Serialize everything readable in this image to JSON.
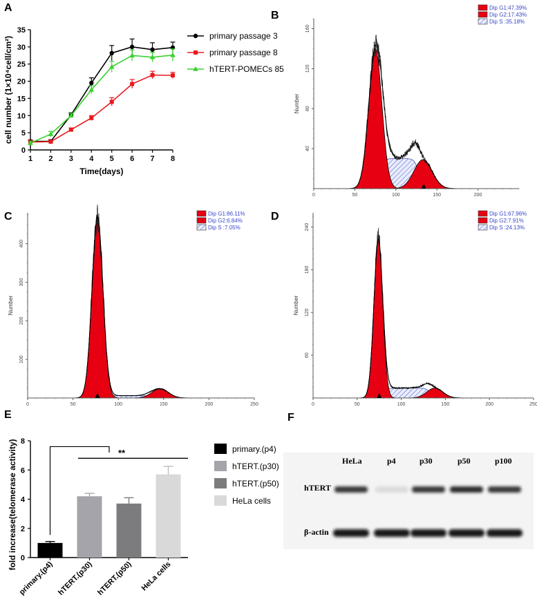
{
  "panel_letters": {
    "a": "A",
    "b": "B",
    "c": "C",
    "d": "D",
    "e": "E",
    "f": "F"
  },
  "chart_data": [
    {
      "id": "A",
      "type": "line",
      "x": [
        1,
        2,
        3,
        4,
        5,
        6,
        7,
        8
      ],
      "series": [
        {
          "name": "primary passage 3",
          "color": "#000000",
          "marker": "circle",
          "values": [
            2.5,
            2.5,
            10.2,
            19.5,
            28.2,
            30.0,
            29.2,
            29.8
          ],
          "errors": [
            0.4,
            0.5,
            0.6,
            1.5,
            2.2,
            2.3,
            2.0,
            1.6
          ]
        },
        {
          "name": "primary passage 8",
          "color": "#e8191e",
          "marker": "square",
          "values": [
            2.3,
            2.4,
            5.9,
            9.3,
            14.0,
            19.2,
            21.8,
            21.7
          ],
          "errors": [
            0.3,
            0.4,
            0.5,
            0.7,
            1.2,
            1.3,
            1.1,
            0.9
          ]
        },
        {
          "name": "hTERT-POMECs 85",
          "color": "#39d12f",
          "marker": "triangle",
          "values": [
            2.0,
            4.6,
            10.0,
            17.5,
            24.2,
            27.5,
            27.0,
            27.6
          ],
          "errors": [
            0.4,
            0.8,
            0.6,
            1.2,
            1.6,
            1.6,
            1.4,
            1.8
          ]
        }
      ],
      "xlabel": "Time(days)",
      "ylabel": "cell number (1×10⁴cell/cm²)",
      "xlim": [
        1,
        8
      ],
      "ylim": [
        0,
        35
      ],
      "xticks": [
        "1",
        "2",
        "3",
        "4",
        "5",
        "6",
        "7",
        "8"
      ],
      "yticks": [
        "0",
        "5",
        "10",
        "15",
        "20",
        "25",
        "30",
        "35"
      ],
      "legend_position": "right"
    },
    {
      "id": "B",
      "type": "area",
      "title": "",
      "xlabel": "",
      "ylabel": "Number",
      "xlim": [
        0,
        250
      ],
      "ylim": [
        0,
        170
      ],
      "xticks": [
        "0",
        "50",
        "100",
        "150",
        "200"
      ],
      "yticks": [
        "40",
        "80",
        "120",
        "160"
      ],
      "legend": [
        "Dip G1:47.39%",
        "Dip G2:17.43%",
        "Dip S  :35.18%"
      ],
      "g1": {
        "mean": 75,
        "sd": 8,
        "height": 140
      },
      "g2": {
        "mean": 133,
        "sd": 11,
        "height": 29
      },
      "s": {
        "from": 80,
        "to": 128,
        "height": 30
      },
      "marker_x": 134
    },
    {
      "id": "C",
      "type": "area",
      "xlabel": "",
      "ylabel": "Number",
      "xlim": [
        0,
        250
      ],
      "ylim": [
        0,
        480
      ],
      "xticks": [
        "0",
        "50",
        "100",
        "150",
        "200",
        "250"
      ],
      "yticks": [
        "100",
        "200",
        "300",
        "400"
      ],
      "legend": [
        "Dip G1:86.11%",
        "Dip G2:6.84%",
        "Dip S  :7.05%"
      ],
      "g1": {
        "mean": 77,
        "sd": 6,
        "height": 470
      },
      "g2": {
        "mean": 146,
        "sd": 9,
        "height": 24
      },
      "s": {
        "from": 85,
        "to": 138,
        "height": 6
      },
      "marker_x": 77
    },
    {
      "id": "D",
      "type": "area",
      "xlabel": "",
      "ylabel": "Number",
      "xlim": [
        0,
        250
      ],
      "ylim": [
        0,
        260
      ],
      "xticks": [
        "0",
        "50",
        "100",
        "150",
        "200",
        "250"
      ],
      "yticks": [
        "60",
        "120",
        "180",
        "240"
      ],
      "legend": [
        "Dip G1:67.96%",
        "Dip G2:7.91%",
        "Dip S  :24.13%"
      ],
      "g1": {
        "mean": 74,
        "sd": 5,
        "height": 222
      },
      "g2": {
        "mean": 138,
        "sd": 9,
        "height": 14
      },
      "s": {
        "from": 80,
        "to": 133,
        "height": 14
      },
      "marker_x": 75
    },
    {
      "id": "E",
      "type": "bar",
      "categories": [
        "primary.(p4)",
        "hTERT.(p30)",
        "hTERT.(p50)",
        "HeLa cells"
      ],
      "values": [
        1.0,
        4.2,
        3.7,
        5.7
      ],
      "errors": [
        0.1,
        0.2,
        0.4,
        0.55
      ],
      "colors": [
        "#000000",
        "#a4a4aa",
        "#7c7c7e",
        "#d9d9d9"
      ],
      "ylabel": "fold increase(telomerase activity)",
      "xlabel": "",
      "ylim": [
        0,
        8
      ],
      "yticks": [
        "0",
        "2",
        "4",
        "6",
        "8"
      ],
      "significance": "**",
      "legend": [
        "primary.(p4)",
        "hTERT.(p30)",
        "hTERT.(p50)",
        "HeLa cells"
      ],
      "legend_position": "right"
    }
  ],
  "blot": {
    "lanes": [
      "HeLa",
      "p4",
      "p30",
      "p50",
      "p100"
    ],
    "rows": [
      "hTERT",
      "β-actin"
    ],
    "htert_intensity": [
      0.85,
      0.1,
      0.85,
      0.9,
      0.85
    ],
    "actin_intensity": [
      0.95,
      0.95,
      0.95,
      0.95,
      0.95
    ]
  }
}
